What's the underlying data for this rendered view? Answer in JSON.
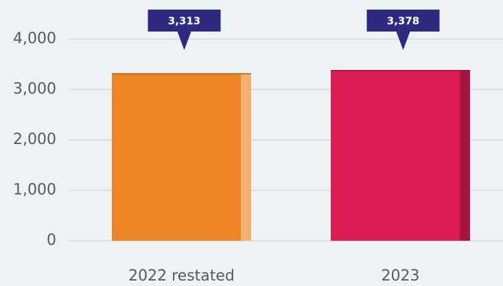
{
  "chart_data": {
    "type": "bar",
    "categories": [
      "2022 restated",
      "2023"
    ],
    "values": [
      3313,
      3378
    ],
    "value_labels": [
      "3,313",
      "3,378"
    ],
    "colors": [
      "#ee8524",
      "#dc1c52"
    ],
    "ylim": [
      0,
      4000
    ],
    "yticks": [
      0,
      {
        "value": 1000,
        "label": "1,000"
      },
      {
        "value": 2000,
        "label": "2,000"
      },
      {
        "value": 3000,
        "label": "3,000"
      },
      {
        "value": 4000,
        "label": "4,000"
      }
    ],
    "grid": true
  }
}
